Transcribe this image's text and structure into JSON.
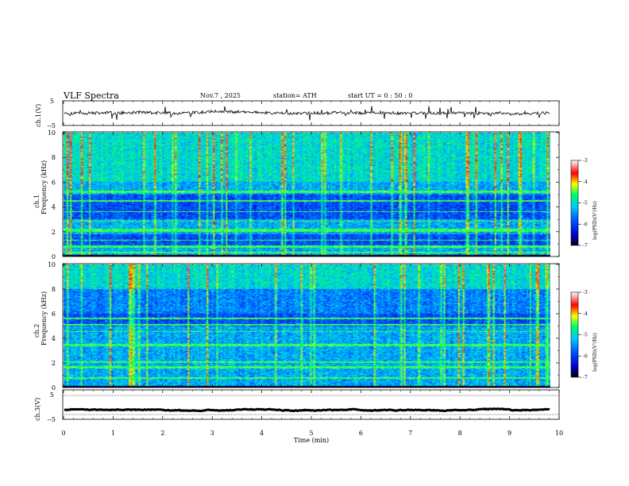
{
  "header": {
    "title": "VLF  Spectra",
    "date": "Nov.7  , 2025",
    "station": "station= ATH",
    "start_ut": "start  UT  =   0  : 50 : 0"
  },
  "chart_data": {
    "type": "spectrogram",
    "title": "VLF  Spectra",
    "xlabel": "Time  (min)",
    "x_range": [
      0,
      10
    ],
    "x_ticks": [
      0,
      1,
      2,
      3,
      4,
      5,
      6,
      7,
      8,
      9,
      10
    ],
    "data_end_min": 9.82,
    "panels": [
      {
        "id": "ch1-waveform",
        "type": "line",
        "ylabel": "ch.1(V)",
        "y_range": [
          -5,
          5
        ],
        "y_ticks": [
          5,
          -5
        ],
        "baseline_v": 0.0,
        "noise_v": 0.6
      },
      {
        "id": "ch1-spectrogram",
        "type": "heatmap",
        "ylabel": "ch.1\nFrequency (kHz)",
        "ylabel_top": "ch.1",
        "ylabel_bottom": "Frequency  (kHz)",
        "y_range": [
          0,
          10
        ],
        "y_ticks": [
          0,
          2,
          4,
          6,
          8,
          10
        ],
        "seed": 7,
        "bands_khz": [
          [
            0.2,
            0.35
          ],
          [
            0.7,
            0.85
          ],
          [
            1.25,
            1.35
          ],
          [
            1.95,
            2.2
          ],
          [
            2.8,
            2.9
          ],
          [
            3.55,
            3.65
          ],
          [
            4.45,
            4.55
          ],
          [
            5.15,
            5.3
          ]
        ],
        "dark_band_khz": [
          [
            3.0,
            5.0
          ],
          [
            0.9,
            1.8
          ]
        ]
      },
      {
        "id": "ch2-spectrogram",
        "type": "heatmap",
        "ylabel_top": "ch.2",
        "ylabel_bottom": "Frequency  (kHz)",
        "y_range": [
          0,
          10
        ],
        "y_ticks": [
          0,
          2,
          4,
          6,
          8,
          10
        ],
        "seed": 13,
        "bands_khz": [
          [
            0.7,
            0.8
          ],
          [
            1.55,
            1.7
          ],
          [
            1.95,
            2.1
          ],
          [
            3.35,
            3.55
          ],
          [
            4.5,
            4.6
          ],
          [
            5.05,
            5.15
          ],
          [
            5.55,
            5.65
          ]
        ],
        "dark_band_khz": [
          [
            5.0,
            8.0
          ]
        ]
      },
      {
        "id": "ch3-waveform",
        "type": "line",
        "ylabel": "ch.3(V)",
        "y_range": [
          -5,
          5
        ],
        "y_ticks": [
          5,
          -5
        ],
        "baseline_v": -1.8,
        "noise_v": 0.08
      }
    ],
    "colorbar": {
      "label": "log(PSD)(V²/Hz)",
      "range": [
        -7,
        -3
      ],
      "ticks": [
        -3,
        -4,
        -5,
        -6,
        -7
      ],
      "colormap": [
        "#000000",
        "#0000cc",
        "#0055ff",
        "#00c8ff",
        "#00ff66",
        "#ffff00",
        "#ff0000",
        "#ffffff"
      ]
    }
  }
}
